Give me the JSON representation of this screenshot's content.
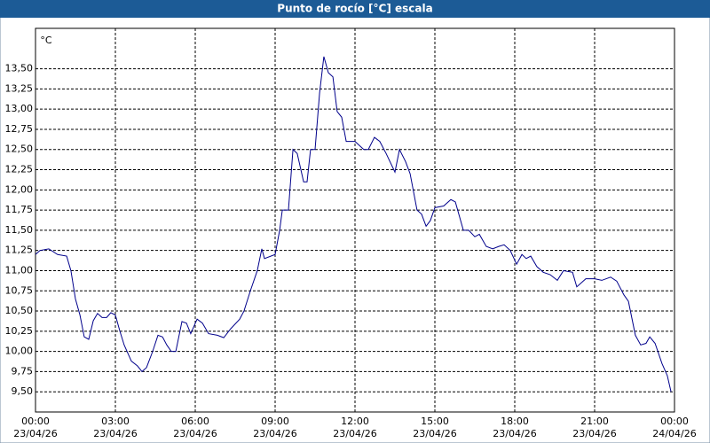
{
  "chart_data": {
    "type": "line",
    "title": "Punto de rocío [°C] escala",
    "y_label": "°C",
    "x": [
      0,
      0.17,
      0.5,
      0.83,
      1.17,
      1.33,
      1.5,
      1.67,
      1.83,
      2.0,
      2.17,
      2.33,
      2.5,
      2.67,
      2.83,
      3.0,
      3.17,
      3.33,
      3.6,
      3.83,
      4.0,
      4.17,
      4.4,
      4.6,
      4.77,
      4.93,
      5.1,
      5.27,
      5.5,
      5.67,
      5.83,
      6.07,
      6.27,
      6.5,
      6.83,
      7.07,
      7.33,
      7.67,
      7.83,
      8.07,
      8.33,
      8.5,
      8.6,
      9.0,
      9.17,
      9.27,
      9.5,
      9.67,
      9.83,
      10.07,
      10.2,
      10.33,
      10.5,
      10.67,
      10.83,
      11.0,
      11.17,
      11.33,
      11.5,
      11.67,
      12.0,
      12.33,
      12.5,
      12.73,
      12.93,
      13.17,
      13.5,
      13.67,
      13.9,
      14.07,
      14.33,
      14.5,
      14.67,
      14.83,
      15.0,
      15.33,
      15.6,
      15.77,
      16.07,
      16.27,
      16.5,
      16.67,
      16.93,
      17.17,
      17.4,
      17.6,
      17.83,
      18.07,
      18.27,
      18.43,
      18.6,
      18.83,
      19.07,
      19.33,
      19.6,
      19.83,
      20.17,
      20.33,
      20.67,
      21.0,
      21.27,
      21.6,
      21.83,
      22.1,
      22.27,
      22.53,
      22.73,
      22.93,
      23.07,
      23.27,
      23.53,
      23.73,
      23.87
    ],
    "values": [
      11.2,
      11.25,
      11.27,
      11.2,
      11.18,
      11.0,
      10.65,
      10.45,
      10.18,
      10.15,
      10.38,
      10.47,
      10.42,
      10.42,
      10.48,
      10.45,
      10.25,
      10.08,
      9.88,
      9.82,
      9.75,
      9.8,
      10.0,
      10.2,
      10.18,
      10.08,
      10.0,
      10.0,
      10.37,
      10.35,
      10.22,
      10.4,
      10.35,
      10.22,
      10.2,
      10.17,
      10.28,
      10.4,
      10.5,
      10.75,
      11.0,
      11.27,
      11.15,
      11.2,
      11.5,
      11.75,
      11.75,
      12.5,
      12.45,
      12.1,
      12.1,
      12.5,
      12.5,
      13.2,
      13.65,
      13.45,
      13.4,
      12.97,
      12.9,
      12.6,
      12.6,
      12.5,
      12.5,
      12.65,
      12.6,
      12.45,
      12.22,
      12.5,
      12.35,
      12.2,
      11.75,
      11.7,
      11.55,
      11.62,
      11.78,
      11.8,
      11.88,
      11.85,
      11.5,
      11.5,
      11.42,
      11.45,
      11.3,
      11.27,
      11.3,
      11.32,
      11.25,
      11.08,
      11.2,
      11.15,
      11.18,
      11.05,
      10.98,
      10.95,
      10.88,
      11.0,
      10.98,
      10.8,
      10.9,
      10.9,
      10.88,
      10.92,
      10.87,
      10.7,
      10.62,
      10.2,
      10.08,
      10.1,
      10.18,
      10.1,
      9.85,
      9.7,
      9.5
    ],
    "color": "#00008b",
    "xlim": [
      0,
      24
    ],
    "xticks": [
      {
        "value": 0,
        "label": "00:00",
        "date": "23/04/26"
      },
      {
        "value": 3,
        "label": "03:00",
        "date": "23/04/26"
      },
      {
        "value": 6,
        "label": "06:00",
        "date": "23/04/26"
      },
      {
        "value": 9,
        "label": "09:00",
        "date": "23/04/26"
      },
      {
        "value": 12,
        "label": "12:00",
        "date": "23/04/26"
      },
      {
        "value": 15,
        "label": "15:00",
        "date": "23/04/26"
      },
      {
        "value": 18,
        "label": "18:00",
        "date": "23/04/26"
      },
      {
        "value": 21,
        "label": "21:00",
        "date": "23/04/26"
      },
      {
        "value": 24,
        "label": "00:00",
        "date": "24/04/26"
      }
    ],
    "ylim": [
      9.25,
      14.0
    ],
    "yticks": [
      {
        "value": 9.5,
        "label": "9,50"
      },
      {
        "value": 9.75,
        "label": "9,75"
      },
      {
        "value": 10.0,
        "label": "10,00"
      },
      {
        "value": 10.25,
        "label": "10,25"
      },
      {
        "value": 10.5,
        "label": "10,50"
      },
      {
        "value": 10.75,
        "label": "10,75"
      },
      {
        "value": 11.0,
        "label": "11,00"
      },
      {
        "value": 11.25,
        "label": "11,25"
      },
      {
        "value": 11.5,
        "label": "11,50"
      },
      {
        "value": 11.75,
        "label": "11,75"
      },
      {
        "value": 12.0,
        "label": "12,00"
      },
      {
        "value": 12.25,
        "label": "12,25"
      },
      {
        "value": 12.5,
        "label": "12,50"
      },
      {
        "value": 12.75,
        "label": "12,75"
      },
      {
        "value": 13.0,
        "label": "13,00"
      },
      {
        "value": 13.25,
        "label": "13,25"
      },
      {
        "value": 13.5,
        "label": "13,50"
      }
    ],
    "grid": true
  }
}
